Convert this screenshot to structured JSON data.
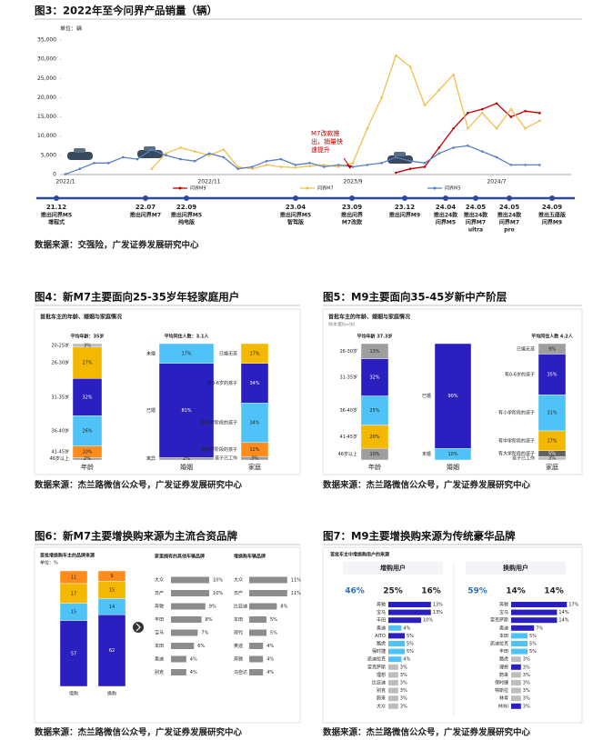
{
  "chart_data": [
    {
      "type": "line",
      "caption": "图3：2022年至今问界产品销量（辆）",
      "unit": "单位：辆",
      "categories": [
        "2022/1",
        null,
        null,
        null,
        null,
        null,
        null,
        null,
        null,
        null,
        "2022/11",
        null,
        null,
        null,
        null,
        null,
        null,
        null,
        null,
        null,
        "2023/9",
        null,
        null,
        null,
        null,
        null,
        null,
        null,
        null,
        null,
        "2024/7",
        null,
        null,
        null
      ],
      "series": [
        {
          "name": "问界M9",
          "color": "#c00000",
          "values": [
            null,
            null,
            null,
            null,
            null,
            null,
            null,
            null,
            null,
            null,
            null,
            null,
            null,
            null,
            null,
            null,
            null,
            null,
            null,
            null,
            null,
            null,
            null,
            500,
            1500,
            2000,
            7000,
            12000,
            16000,
            17000,
            18500,
            15000,
            16500,
            16000
          ]
        },
        {
          "name": "问界M7",
          "color": "#f0c050",
          "values": [
            null,
            null,
            null,
            null,
            null,
            null,
            1500,
            5500,
            7000,
            6000,
            5000,
            6500,
            2000,
            1500,
            2500,
            2000,
            1800,
            2200,
            2500,
            2000,
            3000,
            12000,
            20000,
            31000,
            28000,
            18000,
            22000,
            26000,
            12000,
            16000,
            12000,
            17000,
            12000,
            14000
          ]
        },
        {
          "name": "问界M5",
          "color": "#5b7fc4",
          "values": [
            100,
            1500,
            3000,
            3000,
            4500,
            4000,
            6500,
            5000,
            4000,
            3500,
            5500,
            4500,
            1500,
            2000,
            3500,
            4000,
            2500,
            3000,
            2000,
            2500,
            2000,
            2500,
            3000,
            4500,
            3500,
            3000,
            5500,
            7000,
            7500,
            6000,
            4500,
            2500,
            2500,
            2500
          ]
        }
      ],
      "ylim": [
        0,
        35000
      ],
      "yticks": [
        0,
        {
          "value": 5000,
          "label": "5,000"
        },
        {
          "value": 10000,
          "label": "10,000"
        },
        {
          "value": 15000,
          "label": "15,000"
        },
        {
          "value": 20000,
          "label": "20,000"
        },
        {
          "value": 25000,
          "label": "25,000"
        },
        {
          "value": 30000,
          "label": "30,000"
        },
        {
          "value": 35000,
          "label": "35,000"
        }
      ],
      "annotation": [
        "M7改款推",
        "出，销量快",
        "速提升"
      ],
      "events": [
        {
          "date": "21.12",
          "text": [
            "推出问界M5",
            "增程式"
          ]
        },
        {
          "date": "22.07",
          "text": [
            "推出问界M7"
          ]
        },
        {
          "date": "22.09",
          "text": [
            "推出问界M5",
            "纯电版"
          ]
        },
        {
          "date": "23.04",
          "text": [
            "推出问界M5",
            "智驾版"
          ]
        },
        {
          "date": "23.09",
          "text": [
            "推出问界",
            "M7改款"
          ]
        },
        {
          "date": "23.12",
          "text": [
            "推出问界M9"
          ]
        },
        {
          "date": "24.04",
          "text": [
            "推出24款",
            "问界M5"
          ]
        },
        {
          "date": "24.05",
          "text": [
            "推出24款",
            "问界M7",
            "ultra"
          ]
        },
        {
          "date": "24.05",
          "text": [
            "推出24款",
            "问界M7",
            "pro"
          ]
        },
        {
          "date": "24.09",
          "text": [
            "推出五座版",
            "问界M9"
          ]
        }
      ],
      "source": "数据来源：交强险，广发证券发展研究中心"
    },
    {
      "type": "stacked_bar",
      "caption": "图4：新M7主要面向25-35岁年轻家庭用户",
      "subtitle": "首批车主的年龄、婚姻与家庭情况",
      "ylim": [
        0,
        100
      ],
      "bars": [
        {
          "name": "年龄",
          "note": "平均年龄：35岁",
          "labels": [
            "20-25岁",
            "26-30岁",
            "31-35岁",
            "36-40岁",
            "41-45岁",
            "46岁以上"
          ],
          "values": [
            3,
            27,
            32,
            26,
            10,
            2
          ],
          "value_labels": [
            "3%",
            "27%",
            "32%",
            "26%",
            "10%",
            "2%"
          ],
          "colors": [
            "#bdbdbd",
            "#f5b800",
            "#2a1fbf",
            "#4fc3f7",
            "#ff8c1a",
            "#9e9e9e"
          ]
        },
        {
          "name": "婚姻",
          "note": "平均同住人数：3.1人",
          "labels": [
            "未婚",
            "已婚",
            "离异"
          ],
          "values": [
            17,
            81,
            2
          ],
          "value_labels": [
            "17%",
            "81%",
            "2%"
          ],
          "colors": [
            "#4fc3f7",
            "#2a1fbf",
            "#9e9e9e"
          ]
        },
        {
          "name": "家庭",
          "labels": [
            "已婚无孩",
            "有0-6岁的孩子",
            "有小学阶段的孩子",
            "有中学阶段的孩子",
            "孩子已工作"
          ],
          "values": [
            17,
            34,
            34,
            12,
            3
          ],
          "value_labels": [
            "17%",
            "34%",
            "34%",
            "12%",
            "3%"
          ],
          "colors": [
            "#f5b800",
            "#2a1fbf",
            "#4fc3f7",
            "#ff8c1a",
            "#9e9e9e"
          ]
        }
      ],
      "source": "数据来源：杰兰路微信公众号，广发证券发展研究中心"
    },
    {
      "type": "stacked_bar",
      "caption": "图5：M9主要面向35-45岁新中产阶层",
      "subtitle": "首批车主的年龄、婚姻与家庭情况",
      "sample": "样本量N=90",
      "ylim": [
        0,
        100
      ],
      "bars": [
        {
          "name": "年龄",
          "note": "平均年龄 37.3岁",
          "labels": [
            "26-30岁",
            "31-35岁",
            "36-40岁",
            "41-45岁",
            "46岁以上"
          ],
          "values": [
            13,
            32,
            25,
            20,
            10
          ],
          "value_labels": [
            "13%",
            "32%",
            "25%",
            "20%",
            "10%"
          ],
          "colors": [
            "#9e9e9e",
            "#2a1fbf",
            "#4fc3f7",
            "#f5b800",
            "#9e9e9e"
          ]
        },
        {
          "name": "婚姻",
          "labels": [
            "已婚",
            "未婚"
          ],
          "values": [
            90,
            10
          ],
          "value_labels": [
            "90%",
            "10%"
          ],
          "colors": [
            "#2a1fbf",
            "#4fc3f7"
          ]
        },
        {
          "name": "家庭",
          "note": "平均同住人数 4.2人",
          "labels": [
            "已婚无孩",
            "有0-6岁的孩子",
            "有小学阶段的孩子",
            "有中学阶段的孩子",
            "有大学阶段的孩子",
            "孩子已工作"
          ],
          "values": [
            9,
            35,
            31,
            17,
            5,
            3
          ],
          "value_labels": [
            "9%",
            "35%",
            "31%",
            "17%",
            "5%",
            "3%"
          ],
          "colors": [
            "#9e9e9e",
            "#2a1fbf",
            "#4fc3f7",
            "#f5b800",
            "#616161",
            "#bdbdbd"
          ]
        }
      ],
      "source": "数据来源：杰兰路微信公众号，广发证券发展研究中心"
    },
    {
      "type": "bar_lists",
      "caption": "图6：新M7主要增换购来源为主流合资品牌",
      "subtitle": "首批增换购车主的品牌来源",
      "unit": "单位：%",
      "ylim": [
        0,
        100
      ],
      "bars": [
        {
          "name": "增购",
          "values": [
            11,
            17,
            15,
            57
          ],
          "colors": [
            "#ff8c1a",
            "#f5b800",
            "#4fc3f7",
            "#2a1fbf"
          ]
        },
        {
          "name": "换购",
          "values": [
            9,
            15,
            14,
            62
          ],
          "colors": [
            "#ff8c1a",
            "#f5b800",
            "#4fc3f7",
            "#2a1fbf"
          ]
        }
      ],
      "lists": [
        {
          "title": "家里拥有的其他车辆品牌",
          "labels": [
            "大众",
            "日产",
            "奔驰",
            "丰田",
            "宝马",
            "本田",
            "奥迪",
            "别克"
          ],
          "values": [
            10,
            10,
            9,
            8,
            7,
            6,
            4,
            4
          ],
          "value_labels": [
            "10%",
            "10%",
            "9%",
            "8%",
            "7%",
            "6%",
            "4%",
            "4%"
          ]
        },
        {
          "title": "增换购车辆品牌",
          "labels": [
            "大众",
            "日产",
            "比亚迪",
            "本田",
            "现代",
            "奥迪",
            "奔驰",
            "马自达"
          ],
          "values": [
            11,
            11,
            8,
            5,
            5,
            4,
            4,
            4
          ],
          "value_labels": [
            "11%",
            "11%",
            "8%",
            "5%",
            "5%",
            "4%",
            "4%",
            "4%"
          ]
        }
      ],
      "source": "数据来源：杰兰路微信公众号，广发证券发展研究中心"
    },
    {
      "type": "kpi_lists",
      "caption": "图7：M9主要增换购来源为传统豪华品牌",
      "subtitle": "首批车主中增换购用户的来源",
      "groups": [
        {
          "title": "增购用户",
          "kpis": [
            "46%",
            "25%",
            "16%"
          ],
          "labels": [
            "奔驰",
            "宝马",
            "丰田",
            "奥迪",
            "AITO",
            "路虎",
            "保时捷",
            "凯迪拉克",
            "雷克萨斯",
            "理想",
            "比亚迪",
            "别克",
            "蔚来",
            "大众"
          ],
          "values": [
            13,
            13,
            10,
            4,
            5,
            5,
            5,
            4,
            3,
            3,
            3,
            3,
            3,
            3
          ],
          "value_labels": [
            "13%",
            "13%",
            "10%",
            "4%",
            "5%",
            "5%",
            "5%",
            "4%",
            "3%",
            "3%",
            "3%",
            "3%",
            "3%",
            "3%"
          ],
          "colors": [
            "#2a1fbf",
            "#2a1fbf",
            "#2a1fbf",
            "#4fc3f7",
            "#2a1fbf",
            "#4fc3f7",
            "#4fc3f7",
            "#4fc3f7",
            "#bdbdbd",
            "#bdbdbd",
            "#bdbdbd",
            "#bdbdbd",
            "#bdbdbd",
            "#bdbdbd"
          ]
        },
        {
          "title": "换购用户",
          "kpis": [
            "59%",
            "14%",
            "14%"
          ],
          "labels": [
            "奔驰",
            "宝马",
            "雷克萨斯",
            "奥迪",
            "本田",
            "凯迪拉克",
            "丰田",
            "路虎",
            "理想",
            "蔚来",
            "保时捷",
            "特斯拉",
            "林肯",
            "MINI"
          ],
          "values": [
            17,
            14,
            14,
            7,
            5,
            5,
            5,
            3,
            3,
            3,
            3,
            3,
            3,
            3
          ],
          "value_labels": [
            "17%",
            "14%",
            "14%",
            "7%",
            "5%",
            "5%",
            "5%",
            "3%",
            "3%",
            "3%",
            "3%",
            "3%",
            "3%",
            "3%"
          ],
          "colors": [
            "#2a1fbf",
            "#2a1fbf",
            "#2a1fbf",
            "#2a1fbf",
            "#4fc3f7",
            "#4fc3f7",
            "#4fc3f7",
            "#bdbdbd",
            "#2a1fbf",
            "#bdbdbd",
            "#bdbdbd",
            "#bdbdbd",
            "#bdbdbd",
            "#2a1fbf"
          ]
        }
      ],
      "source": "数据来源：杰兰路微信公众号，广发证券发展研究中心"
    }
  ]
}
